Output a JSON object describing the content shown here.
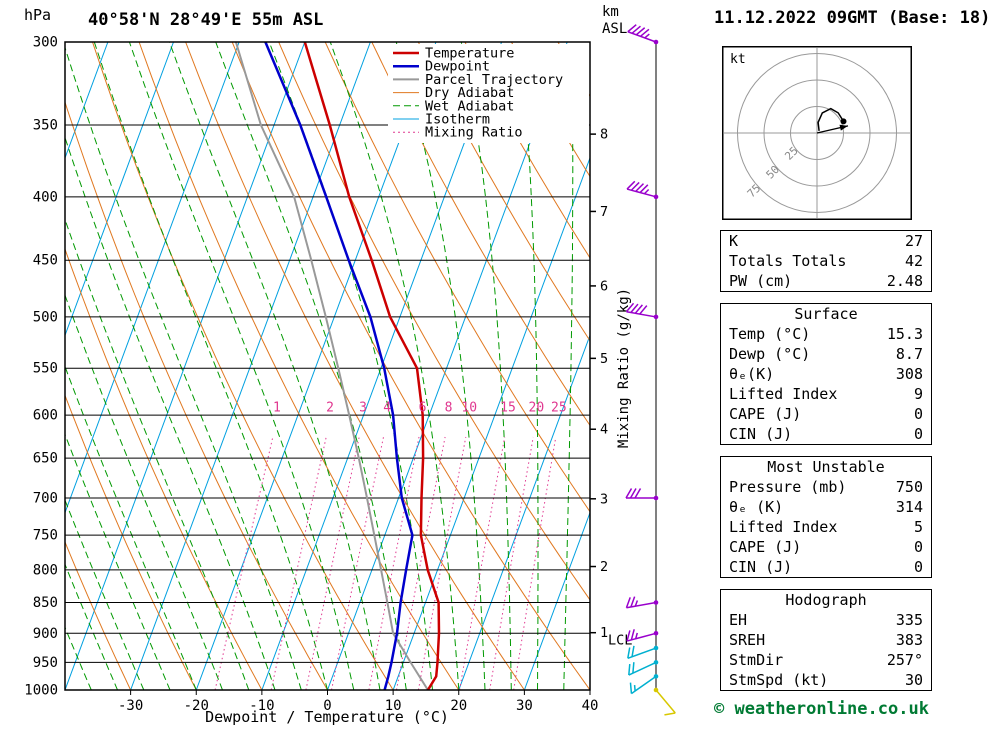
{
  "header": {
    "station_title": "40°58'N 28°49'E 55m ASL",
    "datetime_title": "11.12.2022 09GMT (Base: 18)",
    "pressure_unit_label": "hPa",
    "km_label": "km",
    "asl_label": "ASL"
  },
  "footer": {
    "credit": "© weatheronline.co.uk"
  },
  "chart_data": {
    "type": "skewt-log-p",
    "xlabel": "Dewpoint / Temperature (°C)",
    "right_axis_label": "Mixing Ratio (g/kg)",
    "pressure_range_hpa": [
      300,
      1000
    ],
    "temp_range_c": [
      -40,
      40
    ],
    "pressure_ticks": [
      300,
      350,
      400,
      450,
      500,
      550,
      600,
      650,
      700,
      750,
      800,
      850,
      900,
      950,
      1000
    ],
    "temp_ticks": [
      -30,
      -20,
      -10,
      0,
      10,
      20,
      30,
      40
    ],
    "km_ticks": [
      {
        "km": 1,
        "p": 899
      },
      {
        "km": 2,
        "p": 795
      },
      {
        "km": 3,
        "p": 701
      },
      {
        "km": 4,
        "p": 616
      },
      {
        "km": 5,
        "p": 540
      },
      {
        "km": 6,
        "p": 472
      },
      {
        "km": 7,
        "p": 411
      },
      {
        "km": 8,
        "p": 356
      }
    ],
    "lcl": {
      "label": "LCL",
      "p": 912
    },
    "mixing_ratio_lines_gkg": [
      1,
      2,
      3,
      4,
      6,
      8,
      10,
      15,
      20,
      25
    ],
    "legend": [
      {
        "label": "Temperature",
        "color": "#cc0000",
        "dash": "",
        "width": 2.5
      },
      {
        "label": "Dewpoint",
        "color": "#0000cc",
        "dash": "",
        "width": 2.5
      },
      {
        "label": "Parcel Trajectory",
        "color": "#999999",
        "dash": "",
        "width": 2
      },
      {
        "label": "Dry Adiabat",
        "color": "#e07820",
        "dash": "",
        "width": 1
      },
      {
        "label": "Wet Adiabat",
        "color": "#009900",
        "dash": "7,4",
        "width": 1
      },
      {
        "label": "Isotherm",
        "color": "#00a0e0",
        "dash": "",
        "width": 1
      },
      {
        "label": "Mixing Ratio",
        "color": "#e03890",
        "dash": "2,3",
        "width": 1
      }
    ],
    "colors": {
      "temperature": "#cc0000",
      "dewpoint": "#0000cc",
      "parcel": "#999999",
      "dry_adiabat": "#e07820",
      "wet_adiabat": "#009900",
      "isotherm": "#00a0e0",
      "mixing_ratio": "#e03890",
      "grid": "#000000",
      "frame": "#000000"
    },
    "temperature_profile": [
      [
        1000,
        15.3
      ],
      [
        975,
        15.8
      ],
      [
        950,
        15.2
      ],
      [
        925,
        14.5
      ],
      [
        900,
        13.8
      ],
      [
        850,
        12.0
      ],
      [
        800,
        8.5
      ],
      [
        750,
        5.5
      ],
      [
        700,
        3.5
      ],
      [
        650,
        1.5
      ],
      [
        600,
        -1.0
      ],
      [
        550,
        -4.5
      ],
      [
        500,
        -11.5
      ],
      [
        450,
        -17.5
      ],
      [
        400,
        -24.5
      ],
      [
        350,
        -31.5
      ],
      [
        300,
        -40.0
      ]
    ],
    "dewpoint_profile": [
      [
        1000,
        8.7
      ],
      [
        975,
        8.5
      ],
      [
        950,
        8.2
      ],
      [
        925,
        7.8
      ],
      [
        900,
        7.4
      ],
      [
        850,
        6.2
      ],
      [
        800,
        5.2
      ],
      [
        750,
        4.2
      ],
      [
        700,
        0.5
      ],
      [
        650,
        -2.5
      ],
      [
        600,
        -5.5
      ],
      [
        550,
        -9.5
      ],
      [
        500,
        -14.5
      ],
      [
        450,
        -21.0
      ],
      [
        400,
        -28.0
      ],
      [
        350,
        -36.0
      ],
      [
        300,
        -46.0
      ]
    ],
    "parcel_profile": [
      [
        1000,
        15.3
      ],
      [
        950,
        11.1
      ],
      [
        900,
        6.8
      ],
      [
        850,
        4.2
      ],
      [
        800,
        1.4
      ],
      [
        750,
        -1.6
      ],
      [
        700,
        -4.8
      ],
      [
        650,
        -8.3
      ],
      [
        600,
        -12.2
      ],
      [
        550,
        -16.5
      ],
      [
        500,
        -21.3
      ],
      [
        450,
        -26.7
      ],
      [
        400,
        -32.9
      ],
      [
        350,
        -42.0
      ],
      [
        300,
        -50.5
      ]
    ],
    "wind_barbs": [
      {
        "p": 300,
        "speed_kt": 45,
        "dir_deg": 290,
        "color": "#9900cc"
      },
      {
        "p": 400,
        "speed_kt": 45,
        "dir_deg": 285,
        "color": "#9900cc"
      },
      {
        "p": 500,
        "speed_kt": 40,
        "dir_deg": 280,
        "color": "#9900cc"
      },
      {
        "p": 700,
        "speed_kt": 30,
        "dir_deg": 270,
        "color": "#9900cc"
      },
      {
        "p": 850,
        "speed_kt": 25,
        "dir_deg": 260,
        "color": "#9900cc"
      },
      {
        "p": 900,
        "speed_kt": 25,
        "dir_deg": 255,
        "color": "#9900cc"
      },
      {
        "p": 925,
        "speed_kt": 20,
        "dir_deg": 250,
        "color": "#00b0d0"
      },
      {
        "p": 950,
        "speed_kt": 20,
        "dir_deg": 245,
        "color": "#00b0d0"
      },
      {
        "p": 975,
        "speed_kt": 15,
        "dir_deg": 235,
        "color": "#00b0d0"
      },
      {
        "p": 1000,
        "speed_kt": 10,
        "dir_deg": 140,
        "color": "#d8c800"
      }
    ]
  },
  "hodograph": {
    "unit_label": "kt",
    "rings_kt": [
      25,
      50,
      75
    ],
    "trace_kt": [
      [
        2,
        2
      ],
      [
        1,
        10
      ],
      [
        5,
        19
      ],
      [
        13,
        23
      ],
      [
        20,
        19
      ],
      [
        25,
        11
      ]
    ],
    "storm_motion": {
      "dir_deg": 257,
      "speed_kt": 30
    },
    "colors": {
      "rings": "#999999",
      "trace": "#000000"
    }
  },
  "tables": {
    "sections": [
      {
        "title": "",
        "rows": [
          {
            "label": "K",
            "value": "27"
          },
          {
            "label": "Totals Totals",
            "value": "42"
          },
          {
            "label": "PW (cm)",
            "value": "2.48"
          }
        ]
      },
      {
        "title": "Surface",
        "rows": [
          {
            "label": "Temp (°C)",
            "value": "15.3"
          },
          {
            "label": "Dewp (°C)",
            "value": "8.7"
          },
          {
            "label": "θₑ(K)",
            "value": "308"
          },
          {
            "label": "Lifted Index",
            "value": "9"
          },
          {
            "label": "CAPE (J)",
            "value": "0"
          },
          {
            "label": "CIN (J)",
            "value": "0"
          }
        ]
      },
      {
        "title": "Most Unstable",
        "rows": [
          {
            "label": "Pressure (mb)",
            "value": "750"
          },
          {
            "label": "θₑ (K)",
            "value": "314"
          },
          {
            "label": "Lifted Index",
            "value": "5"
          },
          {
            "label": "CAPE (J)",
            "value": "0"
          },
          {
            "label": "CIN (J)",
            "value": "0"
          }
        ]
      },
      {
        "title": "Hodograph",
        "rows": [
          {
            "label": "EH",
            "value": "335"
          },
          {
            "label": "SREH",
            "value": "383"
          },
          {
            "label": "StmDir",
            "value": "257°"
          },
          {
            "label": "StmSpd (kt)",
            "value": "30"
          }
        ]
      }
    ]
  }
}
